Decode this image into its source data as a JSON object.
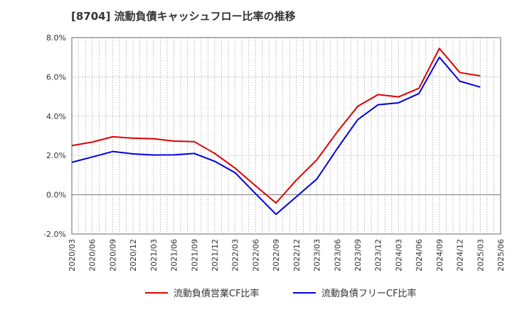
{
  "chart_data": {
    "type": "line",
    "title": "[8704]  流動負債キャッシュフロー比率の推移",
    "xlabel": "",
    "ylabel": "",
    "ylim": [
      -2.0,
      8.0
    ],
    "y_ticks": [
      "-2.0%",
      "0.0%",
      "2.0%",
      "4.0%",
      "6.0%",
      "8.0%"
    ],
    "y_tick_values": [
      -2,
      0,
      2,
      4,
      6,
      8
    ],
    "grid": true,
    "legend_position": "bottom",
    "x": [
      "2020/03",
      "2020/06",
      "2020/09",
      "2020/12",
      "2021/03",
      "2021/06",
      "2021/09",
      "2021/12",
      "2022/03",
      "2022/06",
      "2022/09",
      "2022/12",
      "2023/03",
      "2023/06",
      "2023/09",
      "2023/12",
      "2024/03",
      "2024/06",
      "2024/09",
      "2024/12",
      "2025/03",
      "2025/06"
    ],
    "series": [
      {
        "name": "流動負債営業CF比率",
        "color": "#dd0000",
        "values": [
          2.5,
          2.68,
          2.95,
          2.88,
          2.85,
          2.73,
          2.7,
          2.1,
          1.35,
          0.45,
          -0.42,
          0.75,
          1.78,
          3.2,
          4.5,
          5.1,
          4.98,
          5.42,
          7.45,
          6.22,
          6.05,
          null
        ]
      },
      {
        "name": "流動負債フリーCF比率",
        "color": "#0000dd",
        "values": [
          1.65,
          1.92,
          2.2,
          2.08,
          2.02,
          2.03,
          2.1,
          1.7,
          1.12,
          0.05,
          -1.0,
          -0.1,
          0.8,
          2.35,
          3.82,
          4.58,
          4.68,
          5.15,
          7.0,
          5.78,
          5.48,
          null
        ]
      }
    ]
  }
}
